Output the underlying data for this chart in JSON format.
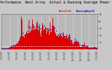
{
  "title": "Solar PV/Inverter  Performance  West Array  Actual & Running Average Power Output",
  "title_fontsize": 3.5,
  "bg_color": "#c8c8c8",
  "plot_bg_color": "#b8b8b8",
  "bar_color": "#dd0000",
  "avg_color": "#0000cc",
  "hline_color": "#ffffff",
  "hline_y": 0.08,
  "grid_color": "#ffffff",
  "ylim": [
    0,
    1.0
  ],
  "num_bars": 365,
  "legend_actual": "Actual(W)",
  "legend_avg": "RunningAvg(W)",
  "xlabel_color": "#202020",
  "tick_fontsize": 2.5,
  "x_tick_labels": [
    "1/1/07",
    "2/1/07",
    "3/1/07",
    "4/1/07",
    "5/1/07",
    "6/1/07",
    "7/1/07",
    "8/1/07",
    "9/1/07",
    "10/1/07",
    "11/1/07",
    "12/1/07",
    "1/1/08"
  ],
  "ytick_labels": [
    "1k",
    "2k",
    "3k",
    "4k",
    "5k"
  ],
  "ytick_vals": [
    0.2,
    0.4,
    0.6,
    0.8,
    1.0
  ]
}
